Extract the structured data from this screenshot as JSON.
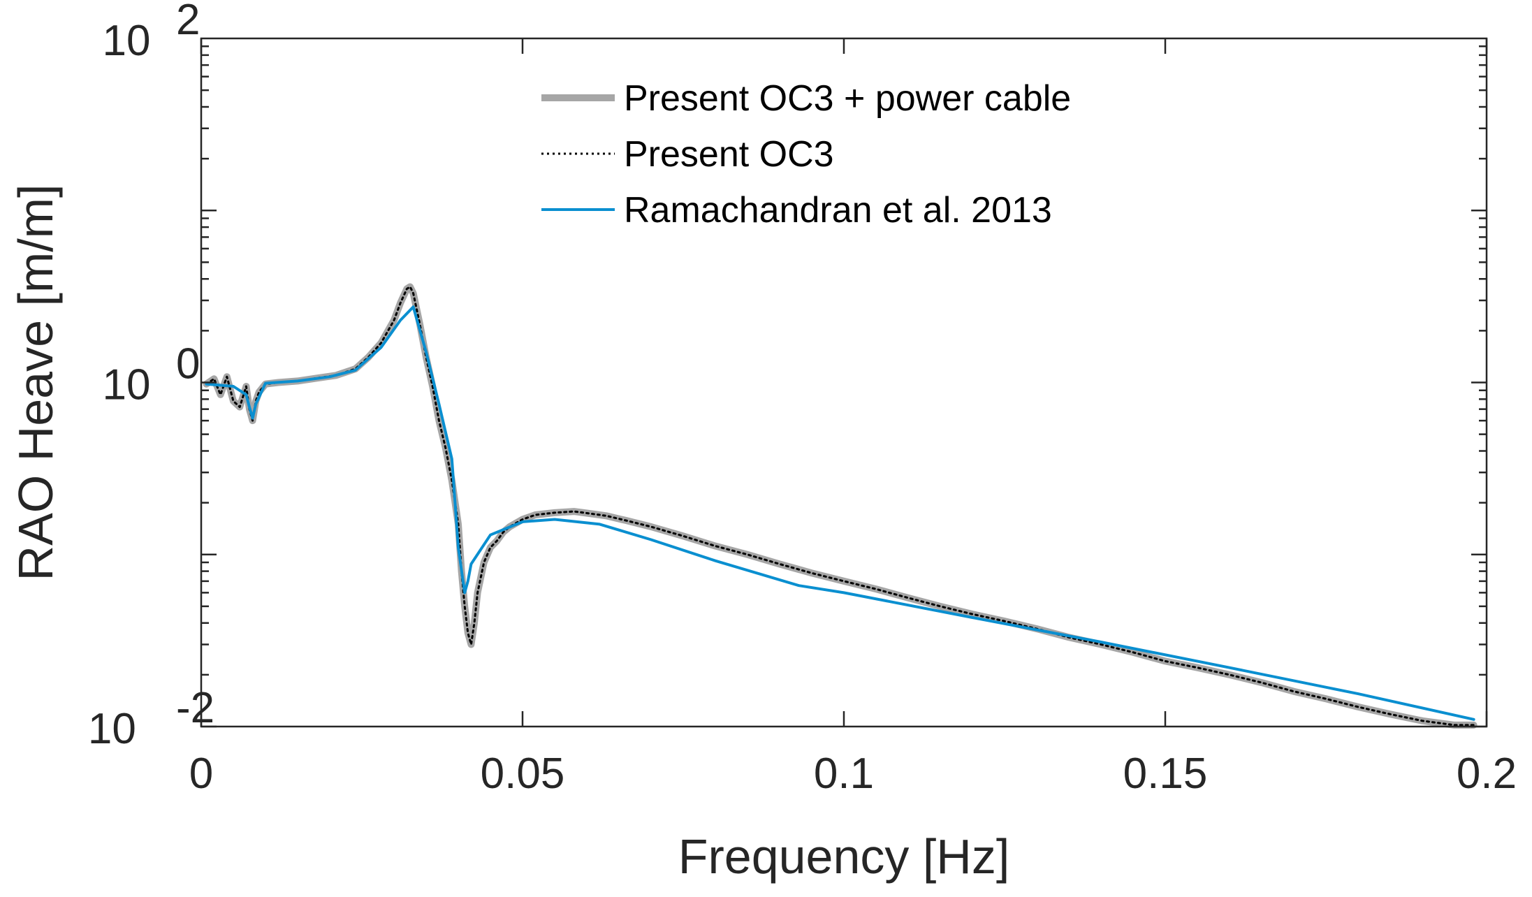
{
  "chart_data": {
    "type": "line",
    "title": "",
    "xlabel": "Frequency [Hz]",
    "ylabel": "RAO Heave [m/m]",
    "xlim": [
      0,
      0.2
    ],
    "ylim": [
      0.01,
      100
    ],
    "yscale": "log",
    "x_ticks": [
      0,
      0.05,
      0.1,
      0.15,
      0.2
    ],
    "x_tick_labels": [
      "0",
      "0.05",
      "0.1",
      "0.15",
      "0.2"
    ],
    "y_ticks": [
      0.01,
      1,
      100
    ],
    "y_tick_labels": [
      {
        "base": "10",
        "exp": "-2"
      },
      {
        "base": "10",
        "exp": "0"
      },
      {
        "base": "10",
        "exp": "2"
      }
    ],
    "grid": false,
    "legend_position": "top-center",
    "series": [
      {
        "name": "Present OC3 + power cable",
        "style": "solid-thick",
        "color": "#a6a6a6",
        "x": [
          0.0008,
          0.002,
          0.003,
          0.004,
          0.005,
          0.006,
          0.007,
          0.0075,
          0.008,
          0.0085,
          0.009,
          0.01,
          0.012,
          0.015,
          0.018,
          0.021,
          0.024,
          0.026,
          0.028,
          0.03,
          0.031,
          0.032,
          0.0325,
          0.033,
          0.034,
          0.035,
          0.036,
          0.037,
          0.038,
          0.039,
          0.04,
          0.0405,
          0.041,
          0.0415,
          0.042,
          0.0425,
          0.043,
          0.044,
          0.045,
          0.046,
          0.047,
          0.048,
          0.05,
          0.052,
          0.055,
          0.058,
          0.06,
          0.063,
          0.066,
          0.07,
          0.075,
          0.08,
          0.085,
          0.09,
          0.095,
          0.1,
          0.105,
          0.11,
          0.115,
          0.12,
          0.125,
          0.13,
          0.135,
          0.14,
          0.145,
          0.15,
          0.155,
          0.16,
          0.165,
          0.17,
          0.175,
          0.18,
          0.185,
          0.19,
          0.195,
          0.198
        ],
        "values": [
          0.98,
          1.05,
          0.85,
          1.08,
          0.78,
          0.72,
          0.95,
          0.7,
          0.6,
          0.78,
          0.88,
          0.98,
          1.0,
          1.02,
          1.06,
          1.1,
          1.2,
          1.4,
          1.7,
          2.3,
          2.9,
          3.5,
          3.6,
          3.3,
          2.2,
          1.4,
          0.95,
          0.6,
          0.42,
          0.27,
          0.15,
          0.08,
          0.05,
          0.035,
          0.03,
          0.04,
          0.06,
          0.09,
          0.11,
          0.12,
          0.135,
          0.145,
          0.16,
          0.17,
          0.175,
          0.178,
          0.174,
          0.168,
          0.158,
          0.145,
          0.128,
          0.112,
          0.1,
          0.088,
          0.078,
          0.07,
          0.063,
          0.056,
          0.05,
          0.045,
          0.041,
          0.037,
          0.033,
          0.03,
          0.027,
          0.024,
          0.022,
          0.02,
          0.018,
          0.016,
          0.0145,
          0.013,
          0.0118,
          0.0108,
          0.0102,
          0.0102
        ]
      },
      {
        "name": "Present OC3",
        "style": "dotted",
        "color": "#000000",
        "x": [
          0.0008,
          0.002,
          0.003,
          0.004,
          0.005,
          0.006,
          0.007,
          0.0075,
          0.008,
          0.0085,
          0.009,
          0.01,
          0.012,
          0.015,
          0.018,
          0.021,
          0.024,
          0.026,
          0.028,
          0.03,
          0.031,
          0.032,
          0.0325,
          0.033,
          0.034,
          0.035,
          0.036,
          0.037,
          0.038,
          0.039,
          0.04,
          0.0405,
          0.041,
          0.0415,
          0.042,
          0.0425,
          0.043,
          0.044,
          0.045,
          0.046,
          0.047,
          0.048,
          0.05,
          0.052,
          0.055,
          0.058,
          0.06,
          0.063,
          0.066,
          0.07,
          0.075,
          0.08,
          0.085,
          0.09,
          0.095,
          0.1,
          0.105,
          0.11,
          0.115,
          0.12,
          0.125,
          0.13,
          0.135,
          0.14,
          0.145,
          0.15,
          0.155,
          0.16,
          0.165,
          0.17,
          0.175,
          0.18,
          0.185,
          0.19,
          0.195,
          0.198
        ],
        "values": [
          0.98,
          1.05,
          0.85,
          1.08,
          0.78,
          0.72,
          0.95,
          0.7,
          0.6,
          0.78,
          0.88,
          0.98,
          1.0,
          1.02,
          1.06,
          1.1,
          1.2,
          1.4,
          1.7,
          2.3,
          2.9,
          3.5,
          3.6,
          3.3,
          2.2,
          1.4,
          0.95,
          0.6,
          0.42,
          0.27,
          0.15,
          0.08,
          0.05,
          0.035,
          0.03,
          0.04,
          0.06,
          0.09,
          0.11,
          0.12,
          0.135,
          0.145,
          0.16,
          0.17,
          0.175,
          0.178,
          0.174,
          0.168,
          0.158,
          0.145,
          0.128,
          0.112,
          0.1,
          0.088,
          0.078,
          0.07,
          0.063,
          0.056,
          0.05,
          0.045,
          0.041,
          0.037,
          0.033,
          0.03,
          0.027,
          0.024,
          0.022,
          0.02,
          0.018,
          0.016,
          0.0145,
          0.013,
          0.0118,
          0.0108,
          0.0102,
          0.0102
        ]
      },
      {
        "name": "Ramachandran et al. 2013",
        "style": "solid",
        "color": "#0a8fd0",
        "x": [
          0.0008,
          0.005,
          0.007,
          0.0075,
          0.008,
          0.0085,
          0.01,
          0.015,
          0.02,
          0.024,
          0.028,
          0.031,
          0.033,
          0.035,
          0.037,
          0.039,
          0.0395,
          0.04,
          0.041,
          0.0415,
          0.042,
          0.045,
          0.05,
          0.055,
          0.062,
          0.07,
          0.08,
          0.093,
          0.1,
          0.12,
          0.14,
          0.16,
          0.18,
          0.198
        ],
        "values": [
          0.98,
          0.95,
          0.85,
          0.72,
          0.62,
          0.75,
          0.99,
          1.02,
          1.08,
          1.18,
          1.6,
          2.3,
          2.75,
          1.5,
          0.75,
          0.36,
          0.2,
          0.11,
          0.06,
          0.07,
          0.088,
          0.13,
          0.155,
          0.16,
          0.15,
          0.122,
          0.092,
          0.066,
          0.06,
          0.043,
          0.031,
          0.022,
          0.0155,
          0.011
        ]
      }
    ]
  }
}
